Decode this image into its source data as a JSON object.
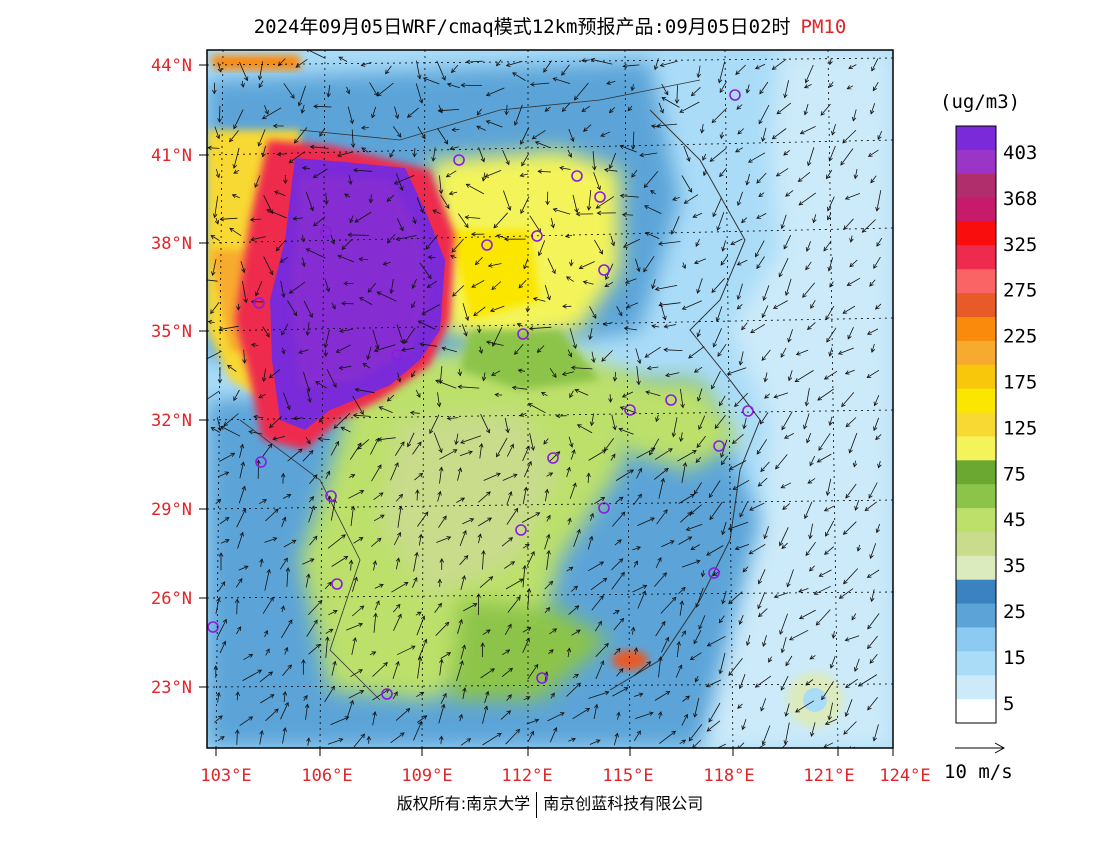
{
  "header": {
    "title": "2024年09月05日WRF/cmaq模式12km预报产品:09月05日02时",
    "pollutant": "PM10"
  },
  "map": {
    "lat_labels": [
      "44°N",
      "41°N",
      "38°N",
      "35°N",
      "32°N",
      "29°N",
      "26°N",
      "23°N"
    ],
    "lon_labels": [
      "103°E",
      "106°E",
      "109°E",
      "112°E",
      "115°E",
      "118°E",
      "121°E",
      "124°E"
    ],
    "label_color": "#e0242a"
  },
  "legend": {
    "unit": "(ug/m3)",
    "labels": [
      "403",
      "368",
      "325",
      "275",
      "225",
      "175",
      "125",
      "75",
      "45",
      "35",
      "25",
      "15",
      "5"
    ],
    "colors": [
      "#7a2ad8",
      "#9b35c8",
      "#b02e6c",
      "#c81a6a",
      "#fa0d0d",
      "#ee2a4e",
      "#fb6464",
      "#e85a28",
      "#fa8a0c",
      "#f7ab2e",
      "#f8c70c",
      "#fbe600",
      "#f8d832",
      "#f4f45a",
      "#6aa832",
      "#8cc44a",
      "#bce06a",
      "#c8dc8c",
      "#dcebbe",
      "#3a82c0",
      "#5ca4d8",
      "#8ccaf2",
      "#aadcf8",
      "#cceaf9",
      "#ffffff"
    ],
    "wind_label": "10 m/s"
  },
  "footer": {
    "copyright": "版权所有:南京大学",
    "company": "南京创蓝科技有限公司"
  }
}
